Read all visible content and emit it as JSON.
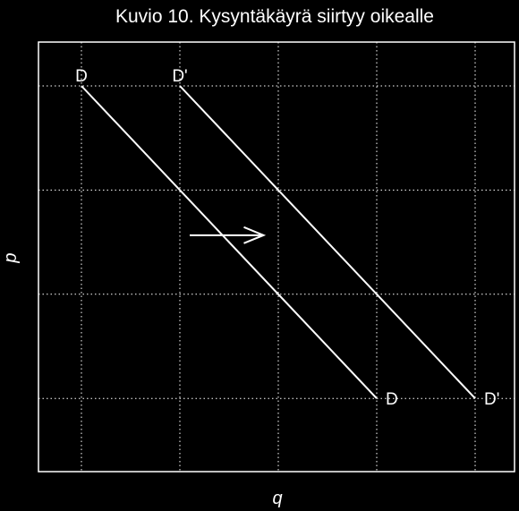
{
  "chart_data": {
    "type": "line",
    "title": "Kuvio 10. Kysyntäkäyrä siirtyy oikealle",
    "xlabel": "q",
    "ylabel": "p",
    "xlim": [
      0,
      1
    ],
    "ylim": [
      0,
      1
    ],
    "grid": true,
    "x_gridlines": [
      0.1,
      0.3,
      0.5,
      0.7,
      0.9
    ],
    "y_gridlines": [
      0.1,
      0.4,
      0.7,
      1.0
    ],
    "series": [
      {
        "name": "D",
        "start_label": "D",
        "end_label": "D",
        "x": [
          0.1,
          0.7
        ],
        "y": [
          1.0,
          0.1
        ]
      },
      {
        "name": "D'",
        "start_label": "D'",
        "end_label": "D'",
        "x": [
          0.3,
          0.9
        ],
        "y": [
          1.0,
          0.1
        ]
      }
    ],
    "annotations": [
      {
        "type": "arrow",
        "from": [
          0.32,
          0.57
        ],
        "to": [
          0.47,
          0.57
        ]
      }
    ],
    "colors": {
      "background": "#000000",
      "foreground": "#ffffff",
      "grid": "#ffffff"
    }
  }
}
